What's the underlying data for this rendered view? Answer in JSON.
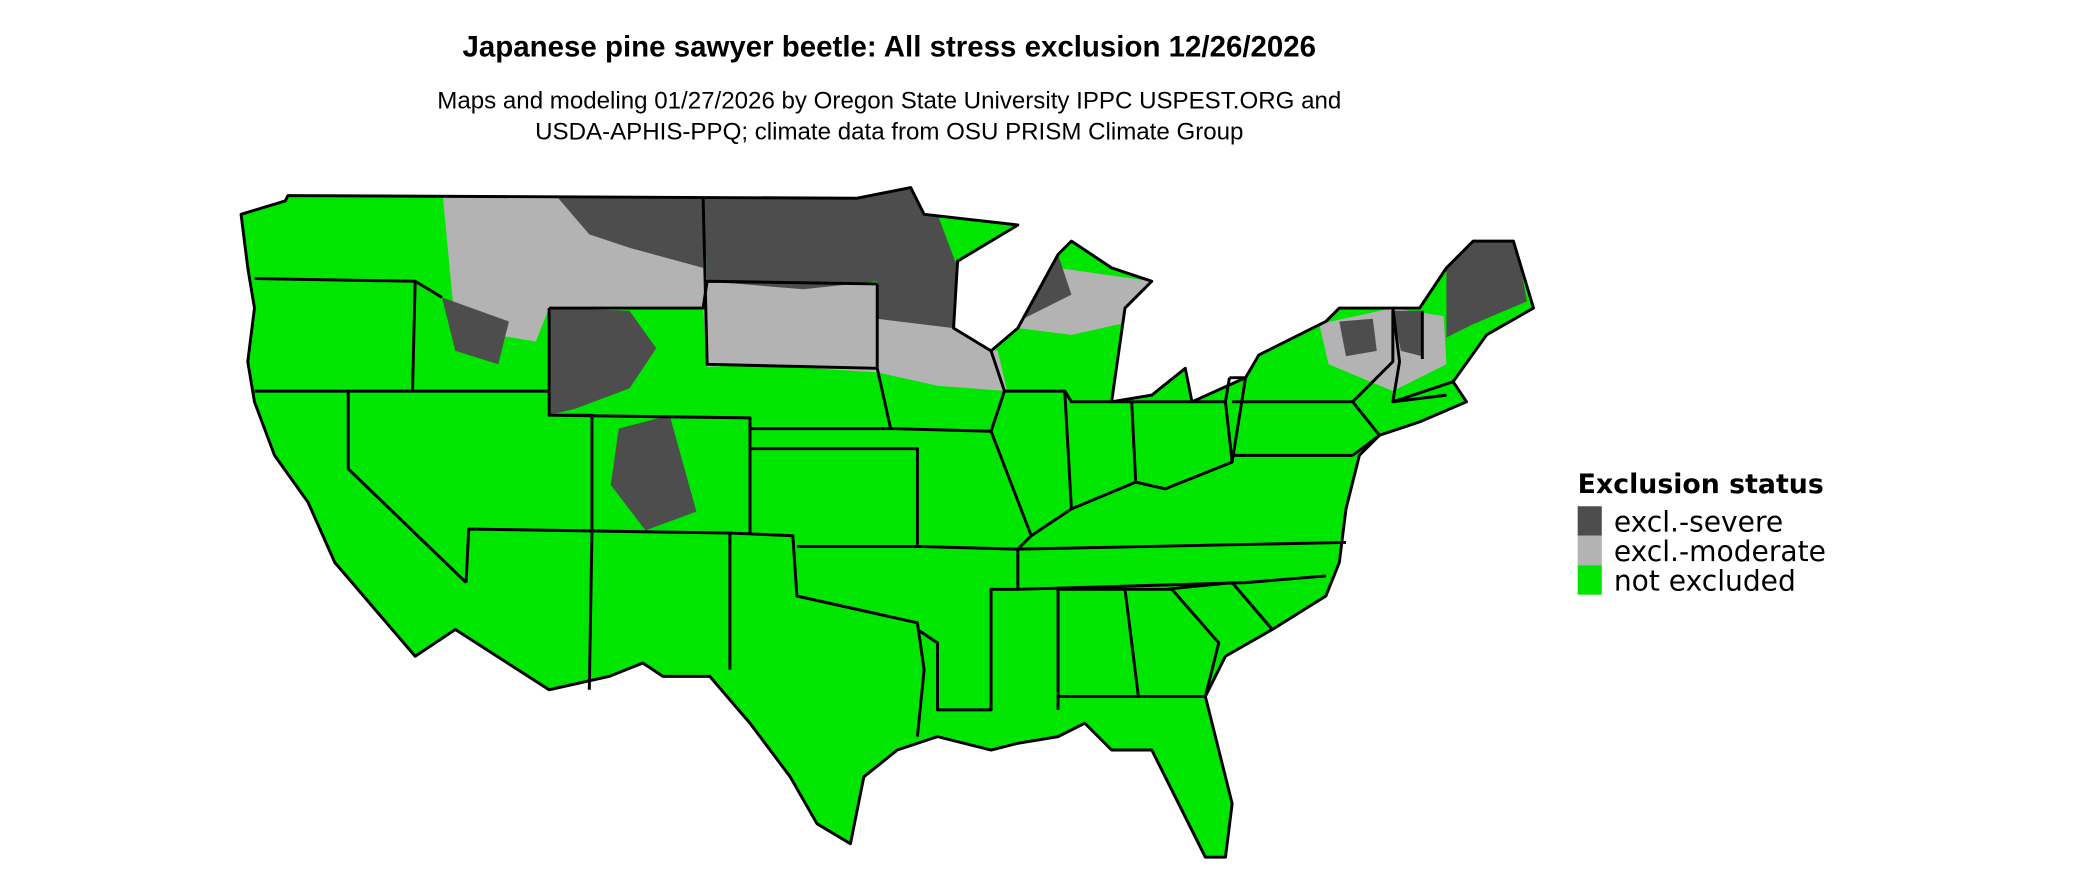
{
  "title": "Japanese pine sawyer beetle: All stress exclusion 12/26/2026",
  "subtitle_line1": "Maps and modeling 01/27/2026 by Oregon State University IPPC USPEST.ORG and",
  "subtitle_line2": "USDA-APHIS-PPQ; climate data from OSU PRISM Climate Group",
  "legend": {
    "title": "Exclusion status",
    "items": [
      {
        "label": "excl.-severe",
        "color": "#4d4d4d"
      },
      {
        "label": "excl.-moderate",
        "color": "#b3b3b3"
      },
      {
        "label": "not excluded",
        "color": "#00e600"
      }
    ]
  }
}
